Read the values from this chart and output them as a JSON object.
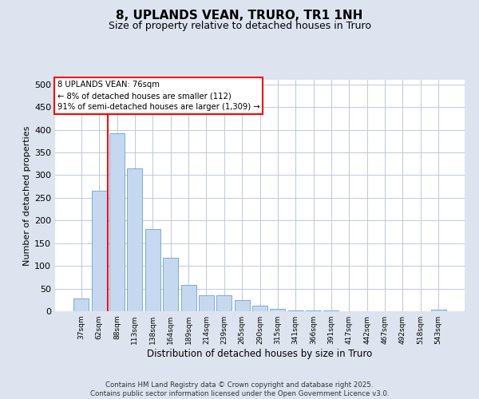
{
  "title_line1": "8, UPLANDS VEAN, TRURO, TR1 1NH",
  "title_line2": "Size of property relative to detached houses in Truro",
  "xlabel": "Distribution of detached houses by size in Truro",
  "ylabel": "Number of detached properties",
  "categories": [
    "37sqm",
    "62sqm",
    "88sqm",
    "113sqm",
    "138sqm",
    "164sqm",
    "189sqm",
    "214sqm",
    "239sqm",
    "265sqm",
    "290sqm",
    "315sqm",
    "341sqm",
    "366sqm",
    "391sqm",
    "417sqm",
    "442sqm",
    "467sqm",
    "492sqm",
    "518sqm",
    "543sqm"
  ],
  "values": [
    29,
    265,
    393,
    314,
    181,
    118,
    58,
    35,
    35,
    24,
    13,
    6,
    1,
    1,
    1,
    0,
    0,
    0,
    0,
    0,
    3
  ],
  "bar_color": "#c5d8f0",
  "bar_edge_color": "#7aabda",
  "red_line_x": 1.5,
  "annotation_text": "8 UPLANDS VEAN: 76sqm\n← 8% of detached houses are smaller (112)\n91% of semi-detached houses are larger (1,309) →",
  "annotation_box_color": "white",
  "annotation_box_edge_color": "red",
  "ylim": [
    0,
    510
  ],
  "yticks": [
    0,
    50,
    100,
    150,
    200,
    250,
    300,
    350,
    400,
    450,
    500
  ],
  "footer": "Contains HM Land Registry data © Crown copyright and database right 2025.\nContains public sector information licensed under the Open Government Licence v3.0.",
  "background_color": "#dde4f0",
  "plot_background_color": "white",
  "grid_color": "#c0c8e0"
}
